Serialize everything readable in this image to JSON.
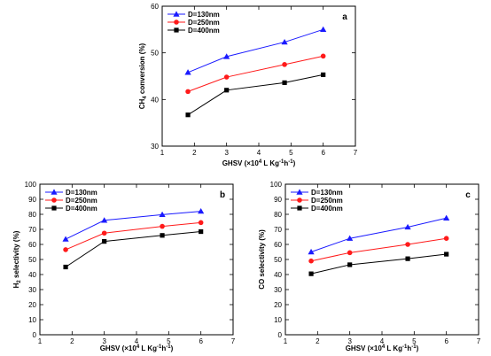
{
  "chart_data": [
    {
      "type": "line",
      "panel_label": "a",
      "xlabel_parts": [
        "GHSV (×10",
        "4",
        " L Kg",
        "-1",
        "h",
        "-1",
        ")"
      ],
      "ylabel_parts": [
        "CH",
        "4",
        " conversion (%)"
      ],
      "xlim": [
        1,
        7
      ],
      "ylim": [
        30,
        60
      ],
      "xticks": [
        1,
        2,
        3,
        4,
        5,
        6,
        7
      ],
      "yticks": [
        30,
        40,
        50,
        60
      ],
      "legend_position": "top-left",
      "x": [
        1.8,
        3,
        4.8,
        6
      ],
      "series": [
        {
          "name": "D=130nm",
          "values": [
            45.8,
            49.2,
            52.3,
            55.0
          ],
          "color": "#1a1aff",
          "marker": "triangle"
        },
        {
          "name": "D=250nm",
          "values": [
            41.7,
            44.8,
            47.5,
            49.3
          ],
          "color": "#ff1a1a",
          "marker": "circle"
        },
        {
          "name": "D=400nm",
          "values": [
            36.7,
            42.0,
            43.6,
            45.3
          ],
          "color": "#000000",
          "marker": "square"
        }
      ]
    },
    {
      "type": "line",
      "panel_label": "b",
      "xlabel_parts": [
        "GHSV (×10",
        "4",
        " L Kg",
        "-1",
        "h",
        "-1",
        ")"
      ],
      "ylabel_parts": [
        "H",
        "2",
        " selectivity (%)"
      ],
      "xlim": [
        1,
        7
      ],
      "ylim": [
        0,
        100
      ],
      "xticks": [
        1,
        2,
        3,
        4,
        5,
        6,
        7
      ],
      "yticks": [
        0,
        10,
        20,
        30,
        40,
        50,
        60,
        70,
        80,
        90,
        100
      ],
      "legend_position": "top-left",
      "x": [
        1.8,
        3,
        4.8,
        6
      ],
      "series": [
        {
          "name": "D=130nm",
          "values": [
            63.5,
            76.0,
            79.8,
            82.0
          ],
          "color": "#1a1aff",
          "marker": "triangle"
        },
        {
          "name": "D=250nm",
          "values": [
            56.5,
            67.5,
            72.0,
            74.5
          ],
          "color": "#ff1a1a",
          "marker": "circle"
        },
        {
          "name": "D=400nm",
          "values": [
            45.0,
            62.0,
            66.0,
            68.5
          ],
          "color": "#000000",
          "marker": "square"
        }
      ]
    },
    {
      "type": "line",
      "panel_label": "c",
      "xlabel_parts": [
        "GHSV (×10",
        "4",
        " L Kg",
        "-1",
        "h",
        "-1",
        ")"
      ],
      "ylabel_parts": [
        "CO selectivity (%)"
      ],
      "xlim": [
        1,
        7
      ],
      "ylim": [
        0,
        100
      ],
      "xticks": [
        1,
        2,
        3,
        4,
        5,
        6,
        7
      ],
      "yticks": [
        0,
        10,
        20,
        30,
        40,
        50,
        60,
        70,
        80,
        90,
        100
      ],
      "legend_position": "top-left",
      "x": [
        1.8,
        3,
        4.8,
        6
      ],
      "series": [
        {
          "name": "D=130nm",
          "values": [
            55.0,
            64.0,
            71.5,
            77.5
          ],
          "color": "#1a1aff",
          "marker": "triangle"
        },
        {
          "name": "D=250nm",
          "values": [
            49.0,
            54.5,
            60.0,
            64.0
          ],
          "color": "#ff1a1a",
          "marker": "circle"
        },
        {
          "name": "D=400nm",
          "values": [
            40.5,
            46.5,
            50.5,
            53.5
          ],
          "color": "#000000",
          "marker": "square"
        }
      ]
    }
  ]
}
